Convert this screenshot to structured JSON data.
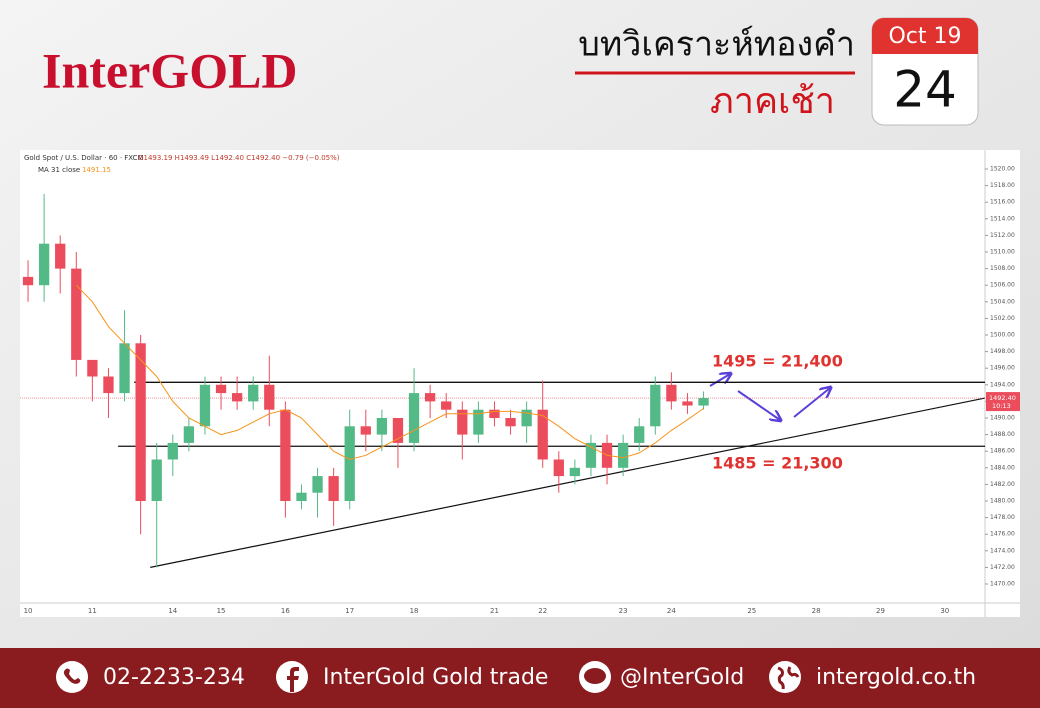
{
  "header": {
    "logo": "InterGOLD",
    "title": "บทวิเคราะห์ทองคำ",
    "subtitle": "ภาคเช้า",
    "calendar_month": "Oct 19",
    "calendar_day": "24"
  },
  "footer": {
    "phone": "02-2233-234",
    "facebook": "InterGold Gold trade",
    "line": "@InterGold",
    "website": "intergold.co.th"
  },
  "chart_data": {
    "type": "candlestick",
    "title": "Gold Spot / U.S. Dollar · 60 · FXCM",
    "ohlc_text": "O1493.19 H1493.49 L1492.40 C1492.40 −0.79 (−0.05%)",
    "categories": [
      "10",
      null,
      null,
      null,
      "11",
      null,
      null,
      null,
      null,
      "14",
      null,
      null,
      "15",
      null,
      null,
      null,
      "16",
      null,
      null,
      null,
      "17",
      null,
      null,
      null,
      "18",
      null,
      null,
      null,
      null,
      "21",
      null,
      null,
      "22",
      null,
      null,
      null,
      null,
      "23",
      null,
      null,
      "24",
      null,
      null,
      null,
      null,
      "25",
      null,
      null,
      null,
      "28",
      null,
      null,
      null,
      "29",
      null,
      null,
      null,
      "30",
      null,
      null
    ],
    "open": [
      1507,
      1506,
      1511,
      1508,
      1497,
      1495,
      1493,
      1499,
      1480,
      1485,
      1487,
      1489,
      1494,
      1493,
      1492,
      1494,
      1491,
      1480,
      1481,
      1483,
      1480,
      1489,
      1488,
      1490,
      1487,
      1493,
      1492,
      1491,
      1488,
      1491,
      1490,
      1489,
      1491,
      1485,
      1483,
      1484,
      1487,
      1484,
      1487,
      1489,
      1494,
      1492,
      1491.5,
      null,
      null,
      null,
      null,
      null,
      null,
      null,
      null,
      null,
      null,
      null,
      null,
      null,
      null,
      null,
      null,
      null
    ],
    "high": [
      1509,
      1517,
      1512,
      1510,
      1497,
      1496,
      1503,
      1500,
      1487,
      1488,
      1490,
      1495,
      1495,
      1495,
      1495,
      1497.5,
      1492,
      1482,
      1484,
      1484,
      1491,
      1491,
      1491,
      1490,
      1496,
      1494,
      1493,
      1492,
      1492,
      1492,
      1491,
      1492,
      1494.5,
      1486,
      1485,
      1488,
      1488,
      1488,
      1490,
      1495,
      1495.5,
      1493,
      1493.2,
      null,
      null,
      null,
      null,
      null,
      null,
      null,
      null,
      null,
      null,
      null,
      null,
      null,
      null,
      null,
      null,
      null
    ],
    "low": [
      1504,
      1504,
      1505,
      1495,
      1492,
      1490,
      1492,
      1476,
      1472,
      1483,
      1486,
      1488,
      1491,
      1491,
      1491,
      1489,
      1478,
      1479,
      1478,
      1477,
      1479,
      1486,
      1486,
      1484,
      1486,
      1490,
      1490,
      1485,
      1487,
      1489,
      1488,
      1487,
      1484,
      1481,
      1482,
      1483,
      1482,
      1483,
      1486,
      1488,
      1491,
      1490.5,
      1491,
      null,
      null,
      null,
      null,
      null,
      null,
      null,
      null,
      null,
      null,
      null,
      null,
      null,
      null,
      null,
      null,
      null
    ],
    "close": [
      1506,
      1511,
      1508,
      1497,
      1495,
      1493,
      1499,
      1480,
      1485,
      1487,
      1489,
      1494,
      1493,
      1492,
      1494,
      1491,
      1480,
      1481,
      1483,
      1480,
      1489,
      1488,
      1490,
      1487,
      1493,
      1492,
      1491,
      1488,
      1491,
      1490,
      1489,
      1491,
      1485,
      1483,
      1484,
      1487,
      1484,
      1487,
      1489,
      1494,
      1492,
      1491.5,
      1492.4,
      null,
      null,
      null,
      null,
      null,
      null,
      null,
      null,
      null,
      null,
      null,
      null,
      null,
      null,
      null,
      null,
      null
    ],
    "up_color": "#53b987",
    "down_color": "#eb4d5c",
    "ma": {
      "name": "MA 31 close",
      "value_text": "1491.15",
      "color": "#f7931a",
      "values": [
        null,
        null,
        null,
        1506,
        1504,
        1501,
        1499,
        1497,
        1495,
        1492,
        1490,
        1489,
        1488,
        1488.5,
        1489.5,
        1490.5,
        1491,
        1490,
        1488,
        1486,
        1485,
        1485.5,
        1486.5,
        1487.5,
        1488.5,
        1489.5,
        1490.5,
        1490.5,
        1490.5,
        1490.8,
        1490.8,
        1490.6,
        1490.3,
        1489,
        1487.5,
        1486.5,
        1485.5,
        1485.2,
        1485.8,
        1487,
        1488.5,
        1489.8,
        1491.15,
        null,
        null,
        null,
        null,
        null,
        null,
        null,
        null,
        null,
        null,
        null,
        null,
        null,
        null,
        null,
        null,
        null
      ]
    },
    "levels": [
      {
        "value": 1494.3,
        "from": 6.6
      },
      {
        "value": 1486.6,
        "from": 5.6
      }
    ],
    "trendline": {
      "x": [
        7.6,
        59.5
      ],
      "y": [
        1472.0,
        1492.4
      ]
    },
    "annotations": [
      "1495 = 21,400",
      "1485 = 21,300"
    ],
    "last_price": {
      "value": 1492.4,
      "label": "1492.40"
    },
    "countdown": "10:13",
    "ylim": [
      1467.71,
      1522.29
    ],
    "yticks": [
      {
        "value": 1470,
        "label": "1470.00"
      },
      {
        "value": 1472,
        "label": "1472.00"
      },
      {
        "value": 1474,
        "label": "1474.00"
      },
      {
        "value": 1476,
        "label": "1476.00"
      },
      {
        "value": 1478,
        "label": "1478.00"
      },
      {
        "value": 1480,
        "label": "1480.00"
      },
      {
        "value": 1482,
        "label": "1482.00"
      },
      {
        "value": 1484,
        "label": "1484.00"
      },
      {
        "value": 1486,
        "label": "1486.00"
      },
      {
        "value": 1488,
        "label": "1488.00"
      },
      {
        "value": 1490,
        "label": "1490.00"
      },
      {
        "value": 1492,
        "label": "1492.00"
      },
      {
        "value": 1494,
        "label": "1494.00"
      },
      {
        "value": 1496,
        "label": "1496.00"
      },
      {
        "value": 1498,
        "label": "1498.00"
      },
      {
        "value": 1500,
        "label": "1500.00"
      },
      {
        "value": 1502,
        "label": "1502.00"
      },
      {
        "value": 1504,
        "label": "1504.00"
      },
      {
        "value": 1506,
        "label": "1506.00"
      },
      {
        "value": 1508,
        "label": "1508.00"
      },
      {
        "value": 1510,
        "label": "1510.00"
      },
      {
        "value": 1512,
        "label": "1512.00"
      },
      {
        "value": 1514,
        "label": "1514.00"
      },
      {
        "value": 1516,
        "label": "1516.00"
      },
      {
        "value": 1518,
        "label": "1518.00"
      },
      {
        "value": 1520,
        "label": "1520.00"
      }
    ]
  }
}
